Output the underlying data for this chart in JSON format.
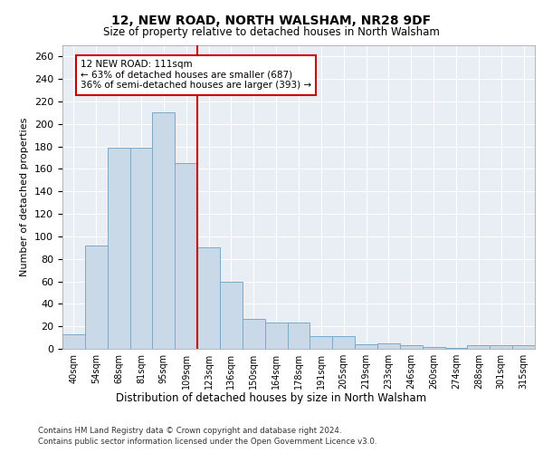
{
  "title1": "12, NEW ROAD, NORTH WALSHAM, NR28 9DF",
  "title2": "Size of property relative to detached houses in North Walsham",
  "xlabel": "Distribution of detached houses by size in North Walsham",
  "ylabel": "Number of detached properties",
  "footnote1": "Contains HM Land Registry data © Crown copyright and database right 2024.",
  "footnote2": "Contains public sector information licensed under the Open Government Licence v3.0.",
  "categories": [
    "40sqm",
    "54sqm",
    "68sqm",
    "81sqm",
    "95sqm",
    "109sqm",
    "123sqm",
    "136sqm",
    "150sqm",
    "164sqm",
    "178sqm",
    "191sqm",
    "205sqm",
    "219sqm",
    "233sqm",
    "246sqm",
    "260sqm",
    "274sqm",
    "288sqm",
    "301sqm",
    "315sqm"
  ],
  "values": [
    13,
    92,
    179,
    179,
    210,
    165,
    90,
    60,
    27,
    23,
    23,
    11,
    11,
    4,
    5,
    3,
    2,
    1,
    3,
    3,
    3
  ],
  "bar_color": "#c9d9e8",
  "bar_edge_color": "#7aaac8",
  "vline_color": "#cc0000",
  "annotation_title": "12 NEW ROAD: 111sqm",
  "annotation_line1": "← 63% of detached houses are smaller (687)",
  "annotation_line2": "36% of semi-detached houses are larger (393) →",
  "annotation_box_color": "#cc0000",
  "ylim": [
    0,
    270
  ],
  "yticks": [
    0,
    20,
    40,
    60,
    80,
    100,
    120,
    140,
    160,
    180,
    200,
    220,
    240,
    260
  ],
  "background_color": "#e8eef4",
  "grid_color": "#ffffff"
}
